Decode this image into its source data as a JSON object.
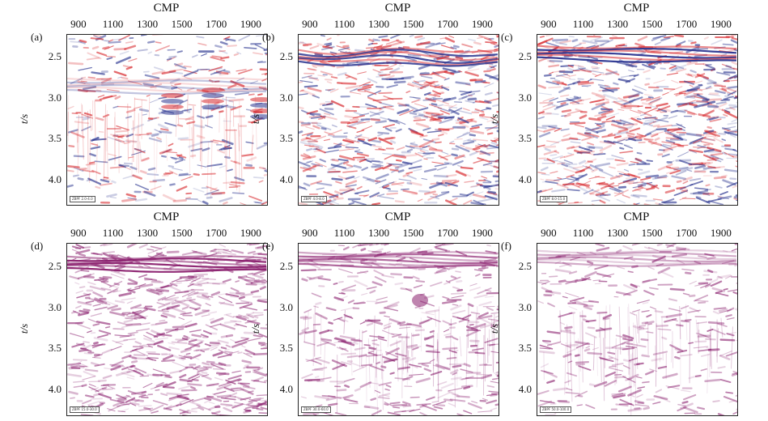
{
  "x_axis_title": "CMP",
  "y_axis_label": "t/s",
  "x_ticks": [
    "900",
    "1100",
    "1300",
    "1500",
    "1700",
    "1900"
  ],
  "y_ticks": [
    "2.5",
    "3.0",
    "3.5",
    "4.0"
  ],
  "panels": [
    {
      "label": "(a)",
      "stamp": "ZBPF 2.0-4.0",
      "scheme": "redblue",
      "reflector_time": 2.85,
      "reflector_strength": 0.3,
      "noise": 0.45
    },
    {
      "label": "(b)",
      "stamp": "ZBPF 4.0-8.0",
      "scheme": "redblue",
      "reflector_time": 2.5,
      "reflector_strength": 0.9,
      "noise": 0.85
    },
    {
      "label": "(c)",
      "stamp": "ZBPF 8.0-15.0",
      "scheme": "redblue",
      "reflector_time": 2.45,
      "reflector_strength": 1.0,
      "noise": 0.9
    },
    {
      "label": "(d)",
      "stamp": "ZBPF 15.0-30.0",
      "scheme": "magenta",
      "reflector_time": 2.47,
      "reflector_strength": 1.0,
      "noise": 0.8
    },
    {
      "label": "(e)",
      "stamp": "ZBPF 30.0-60.0",
      "scheme": "magenta",
      "reflector_time": 2.42,
      "reflector_strength": 0.7,
      "noise": 0.5
    },
    {
      "label": "(f)",
      "stamp": "ZBPF 50.0-100.0",
      "scheme": "magenta",
      "reflector_time": 2.4,
      "reflector_strength": 0.4,
      "noise": 0.4
    }
  ],
  "colors": {
    "red": "#d7262b",
    "blue": "#2b3590",
    "magenta": "#8a1f6e",
    "axis": "#222222"
  }
}
